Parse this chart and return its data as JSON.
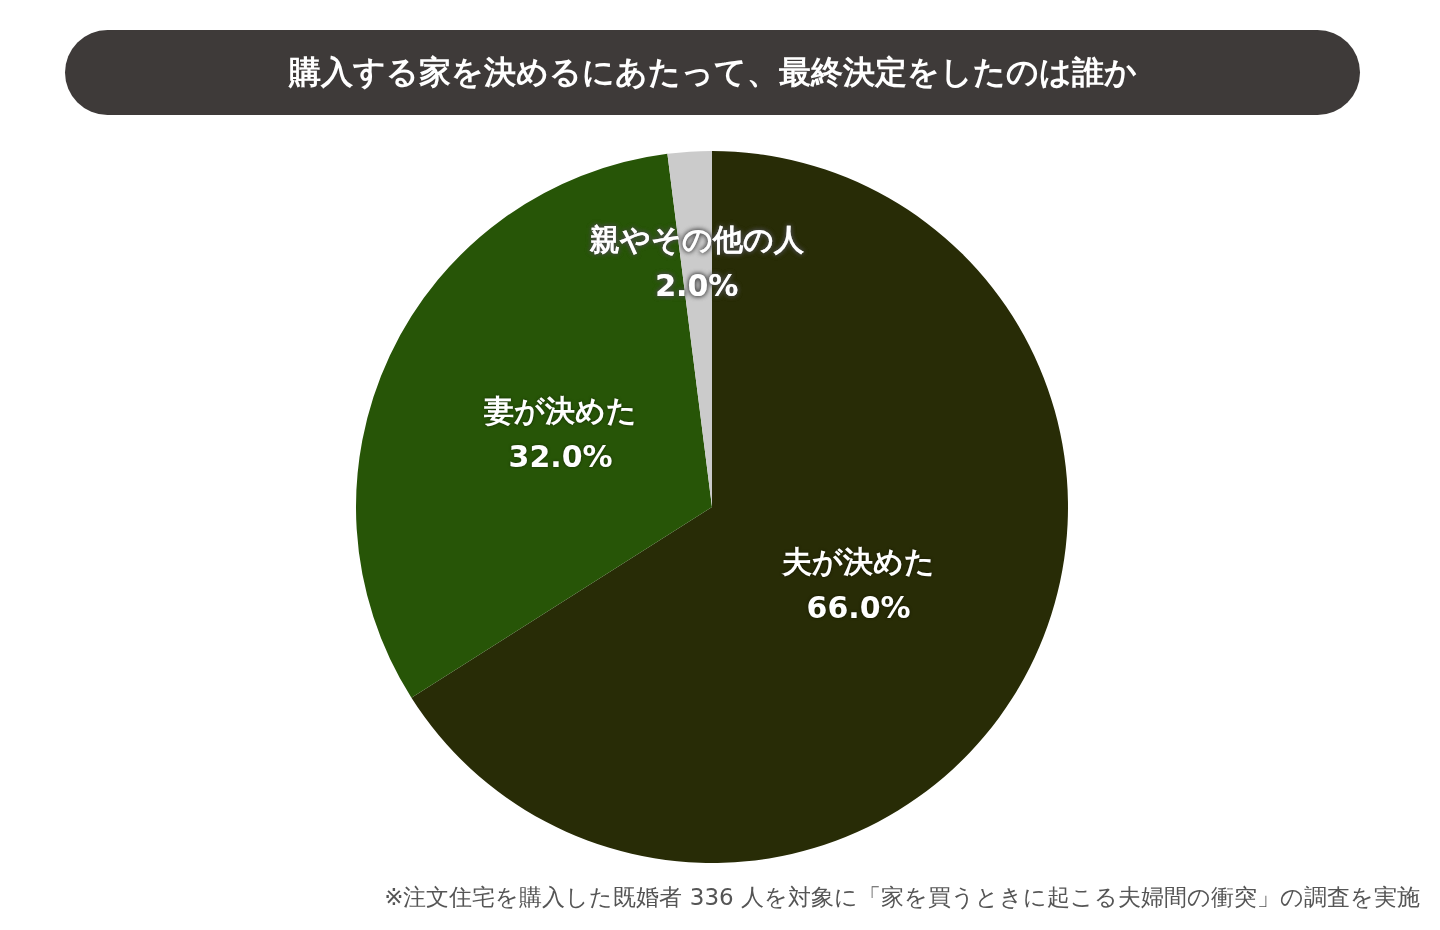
{
  "chart_data": {
    "type": "pie",
    "title": "購入する家を決めるにあたって、最終決定をしたのは誰か",
    "categories": [
      "夫が決めた",
      "妻が決めた",
      "親やその他の人"
    ],
    "values": [
      66,
      32,
      2
    ],
    "colors": [
      "#282c06",
      "#275507",
      "#cbcbcb"
    ],
    "value_labels": [
      "66.0%",
      "32.0%",
      "2.0%"
    ],
    "annotations": [
      "※注文住宅を購入した既婚者 336 人を対象に「家を買うときに起こる夫婦間の衝突」の調査を実施"
    ]
  }
}
